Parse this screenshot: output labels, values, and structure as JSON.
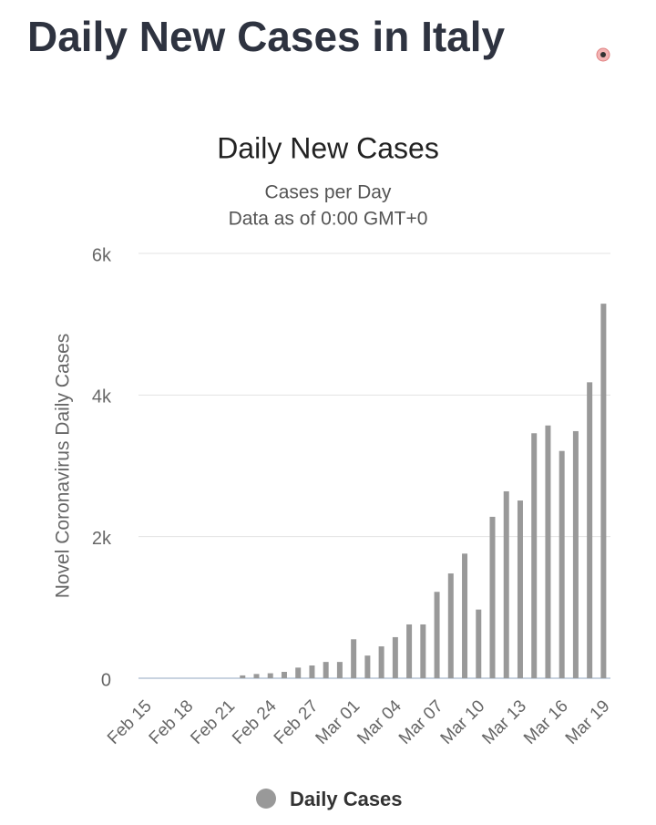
{
  "page_title": "Daily New Cases in Italy",
  "chart_data": {
    "type": "bar",
    "title": "Daily New Cases",
    "subtitle": [
      "Cases per Day",
      "Data as of 0:00 GMT+0"
    ],
    "y_label": "Novel Coronavirus Daily Cases",
    "categories": [
      "Feb 15",
      null,
      null,
      "Feb 18",
      null,
      null,
      "Feb 21",
      null,
      null,
      "Feb 24",
      null,
      null,
      "Feb 27",
      null,
      null,
      "Mar 01",
      null,
      null,
      "Mar 04",
      null,
      null,
      "Mar 07",
      null,
      null,
      "Mar 10",
      null,
      null,
      "Mar 13",
      null,
      null,
      "Mar 16",
      null,
      null,
      "Mar 19"
    ],
    "series": [
      {
        "name": "Daily Cases",
        "color": "#999999",
        "values": [
          0,
          0,
          0,
          0,
          0,
          0,
          0,
          40,
          60,
          70,
          90,
          150,
          180,
          230,
          230,
          550,
          320,
          450,
          580,
          760,
          760,
          1220,
          1480,
          1760,
          970,
          2280,
          2640,
          2510,
          3460,
          3570,
          3210,
          3490,
          4180,
          5290
        ]
      }
    ],
    "ylim": [
      0,
      6000
    ],
    "yticks": [
      0,
      {
        "value": 2000,
        "label": "2k"
      },
      {
        "value": 4000,
        "label": "4k"
      },
      {
        "value": 6000,
        "label": "6k"
      }
    ],
    "grid": true,
    "legend": "bottom"
  }
}
